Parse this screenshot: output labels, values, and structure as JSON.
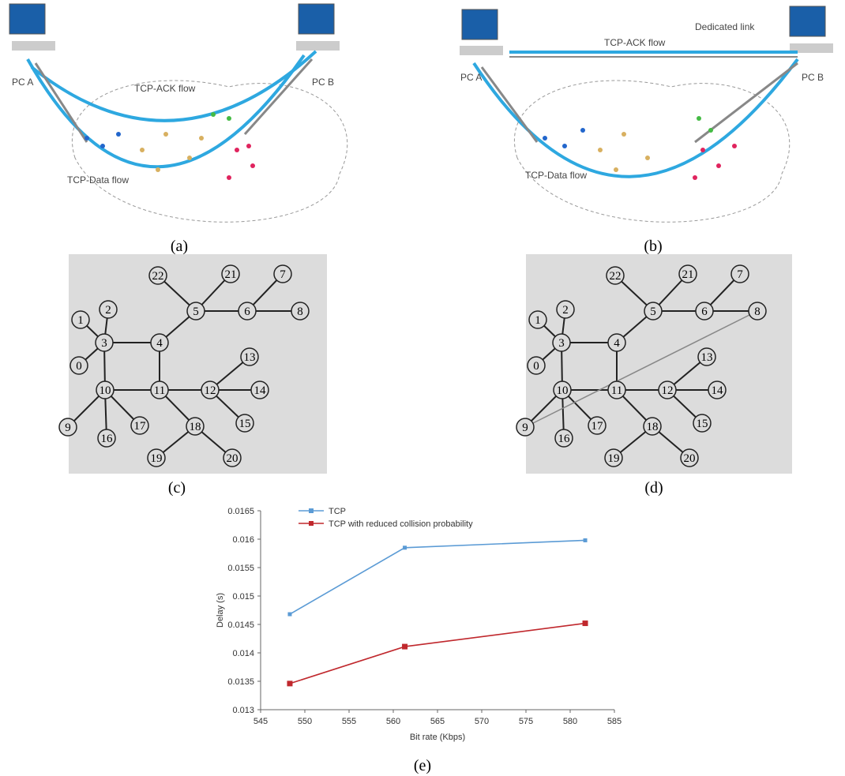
{
  "panels": [
    {
      "caption": "(a)",
      "pc_a": "PC A",
      "pc_b": "PC B",
      "ack": "TCP-ACK flow",
      "data": "TCP-Data flow"
    },
    {
      "caption": "(b)",
      "pc_a": "PC A",
      "pc_b": "PC B",
      "ack": "TCP-ACK flow",
      "data": "TCP-Data flow",
      "link": "Dedicated link"
    }
  ],
  "graphs": [
    {
      "caption": "(c)",
      "nodes": [
        "0",
        "1",
        "2",
        "3",
        "4",
        "5",
        "6",
        "7",
        "8",
        "9",
        "10",
        "11",
        "12",
        "13",
        "14",
        "15",
        "16",
        "17",
        "18",
        "19",
        "20",
        "21",
        "22"
      ]
    },
    {
      "caption": "(d)",
      "nodes": [
        "0",
        "1",
        "2",
        "3",
        "4",
        "5",
        "6",
        "7",
        "8",
        "9",
        "10",
        "11",
        "12",
        "13",
        "14",
        "15",
        "16",
        "17",
        "18",
        "19",
        "20",
        "21",
        "22"
      ]
    }
  ],
  "chart_data": {
    "type": "line",
    "caption": "(e)",
    "x_label": "Bit rate (Kbps)",
    "y_label": "Delay (s)",
    "x": [
      548.3,
      561.3,
      581.7
    ],
    "series": [
      {
        "name": "TCP",
        "color": "#5b9bd5",
        "values": [
          0.01468,
          0.01585,
          0.01598
        ]
      },
      {
        "name": "TCP with reduced collision probability",
        "color": "#c0282d",
        "values": [
          0.01346,
          0.01411,
          0.01452
        ]
      }
    ],
    "xlim": [
      545,
      585
    ],
    "xticks": [
      545,
      550,
      555,
      560,
      565,
      570,
      575,
      580,
      585
    ],
    "ylim": [
      0.013,
      0.0165
    ],
    "yticks": [
      0.013,
      0.0135,
      0.014,
      0.0145,
      0.015,
      0.0155,
      0.016,
      0.0165
    ]
  }
}
